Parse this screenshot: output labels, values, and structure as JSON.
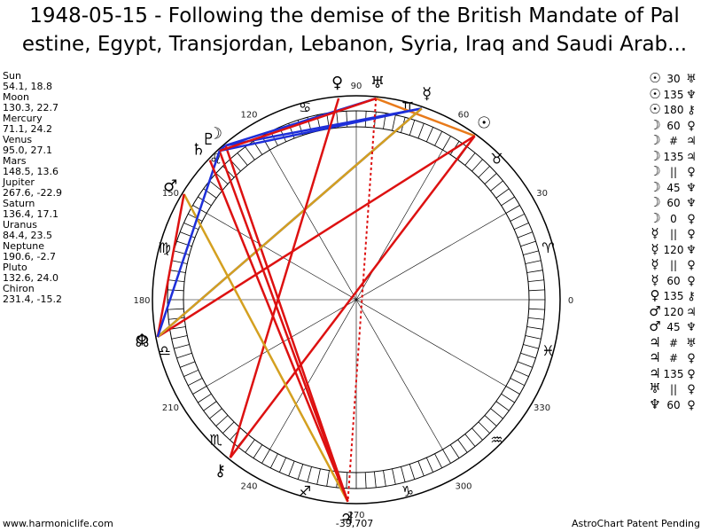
{
  "title_line_1": "1948-05-15 - Following the demise of the British Mandate of Pal",
  "title_line_2": "estine, Egypt, Transjordan, Lebanon, Syria, Iraq and Saudi Arab...",
  "planets": [
    {
      "name": "Sun",
      "coords": "54.1, 18.8"
    },
    {
      "name": "Moon",
      "coords": "130.3, 22.7"
    },
    {
      "name": "Mercury",
      "coords": "71.1, 24.2"
    },
    {
      "name": "Venus",
      "coords": "95.0, 27.1"
    },
    {
      "name": "Mars",
      "coords": "148.5, 13.6"
    },
    {
      "name": "Jupiter",
      "coords": "267.6, -22.9"
    },
    {
      "name": "Saturn",
      "coords": "136.4, 17.1"
    },
    {
      "name": "Uranus",
      "coords": "84.4, 23.5"
    },
    {
      "name": "Neptune",
      "coords": "190.6, -2.7"
    },
    {
      "name": "Pluto",
      "coords": "132.6, 24.0"
    },
    {
      "name": "Chiron",
      "coords": "231.4, -15.2"
    }
  ],
  "aspects": [
    {
      "a": "☉",
      "v": "30",
      "b": "♅"
    },
    {
      "a": "☉",
      "v": "135",
      "b": "♆"
    },
    {
      "a": "☉",
      "v": "180",
      "b": "⚷"
    },
    {
      "a": "☽",
      "v": "60",
      "b": "♀"
    },
    {
      "a": "☽",
      "v": "#",
      "b": "♃"
    },
    {
      "a": "☽",
      "v": "135",
      "b": "♃"
    },
    {
      "a": "☽",
      "v": "||",
      "b": "♀"
    },
    {
      "a": "☽",
      "v": "45",
      "b": "♆"
    },
    {
      "a": "☽",
      "v": "60",
      "b": "♆"
    },
    {
      "a": "☽",
      "v": "0",
      "b": "♀"
    },
    {
      "a": "☿",
      "v": "||",
      "b": "♀"
    },
    {
      "a": "☿",
      "v": "120",
      "b": "♆"
    },
    {
      "a": "☿",
      "v": "||",
      "b": "♀"
    },
    {
      "a": "☿",
      "v": "60",
      "b": "♀"
    },
    {
      "a": "♀",
      "v": "135",
      "b": "⚷"
    },
    {
      "a": "♂",
      "v": "120",
      "b": "♃"
    },
    {
      "a": "♂",
      "v": "45",
      "b": "♆"
    },
    {
      "a": "♃",
      "v": "#",
      "b": "♅"
    },
    {
      "a": "♃",
      "v": "#",
      "b": "♀"
    },
    {
      "a": "♃",
      "v": "135",
      "b": "♀"
    },
    {
      "a": "♅",
      "v": "||",
      "b": "♀"
    },
    {
      "a": "♆",
      "v": "60",
      "b": "♀"
    }
  ],
  "wheel": {
    "degree_labels": [
      "0",
      "30",
      "60",
      "90",
      "120",
      "150",
      "180",
      "210",
      "240",
      "270",
      "300",
      "330"
    ],
    "sign_glyphs": [
      "♈",
      "♉",
      "♊",
      "♋",
      "♌",
      "♍",
      "♎",
      "♏",
      "♐",
      "♑",
      "♒",
      "♓"
    ],
    "positions": [
      {
        "glyph": "☉",
        "lon": 54.1
      },
      {
        "glyph": "☽",
        "lon": 130.3
      },
      {
        "glyph": "☿",
        "lon": 71.1
      },
      {
        "glyph": "♀",
        "lon": 95.0
      },
      {
        "glyph": "♂",
        "lon": 148.5
      },
      {
        "glyph": "♃",
        "lon": 267.6
      },
      {
        "glyph": "♄",
        "lon": 136.4
      },
      {
        "glyph": "♅",
        "lon": 84.4
      },
      {
        "glyph": "♆",
        "lon": 190.6
      },
      {
        "glyph": "♇",
        "lon": 132.6
      },
      {
        "glyph": "⚷",
        "lon": 231.4
      },
      {
        "glyph": "☊",
        "lon": 191
      }
    ],
    "aspect_lines": [
      {
        "from": 54.1,
        "to": 84.4,
        "color": "#e87a1a",
        "style": "solid"
      },
      {
        "from": 54.1,
        "to": 190.6,
        "color": "#dd1111",
        "style": "solid"
      },
      {
        "from": 54.1,
        "to": 231.4,
        "color": "#dd1111",
        "style": "solid"
      },
      {
        "from": 130.3,
        "to": 71.1,
        "color": "#1e2fd9",
        "style": "solid"
      },
      {
        "from": 130.3,
        "to": 84.4,
        "color": "#1e2fd9",
        "style": "solid"
      },
      {
        "from": 130.3,
        "to": 267.6,
        "color": "#dd1111",
        "style": "solid"
      },
      {
        "from": 130.3,
        "to": 267.6,
        "color": "#dd1111",
        "style": "dotted"
      },
      {
        "from": 130.3,
        "to": 132.6,
        "color": "#1e2fd9",
        "style": "solid"
      },
      {
        "from": 71.1,
        "to": 190.6,
        "color": "#1e2fd9",
        "style": "solid"
      },
      {
        "from": 71.1,
        "to": 132.6,
        "color": "#1e2fd9",
        "style": "solid"
      },
      {
        "from": 71.1,
        "to": 190.6,
        "color": "#d4a020",
        "style": "solid"
      },
      {
        "from": 95.0,
        "to": 231.4,
        "color": "#dd1111",
        "style": "solid"
      },
      {
        "from": 148.5,
        "to": 267.6,
        "color": "#d4a020",
        "style": "solid"
      },
      {
        "from": 148.5,
        "to": 190.6,
        "color": "#dd1111",
        "style": "solid"
      },
      {
        "from": 84.4,
        "to": 267.6,
        "color": "#dd1111",
        "style": "dotted"
      },
      {
        "from": 132.6,
        "to": 267.6,
        "color": "#dd1111",
        "style": "solid"
      },
      {
        "from": 190.6,
        "to": 132.6,
        "color": "#1e2fd9",
        "style": "solid"
      },
      {
        "from": 84.4,
        "to": 132.6,
        "color": "#dd1111",
        "style": "solid"
      },
      {
        "from": 136.4,
        "to": 267.6,
        "color": "#dd1111",
        "style": "solid"
      },
      {
        "from": 136.4,
        "to": 267.6,
        "color": "#dd1111",
        "style": "dotted"
      }
    ]
  },
  "footer_left": "www.harmoniclife.com",
  "footer_center": "-39,707",
  "footer_right": "AstroChart Patent Pending"
}
